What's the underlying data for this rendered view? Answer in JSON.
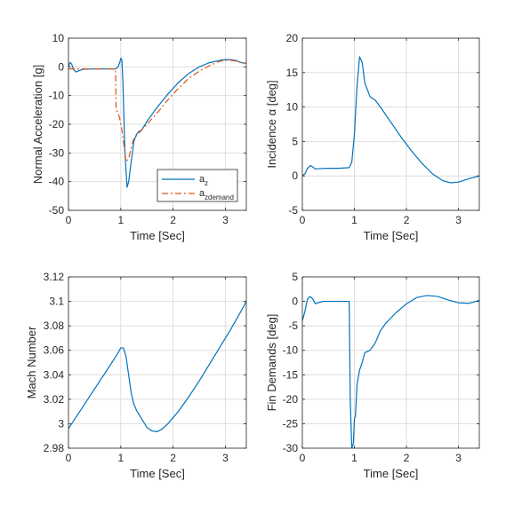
{
  "colors": {
    "series_blue": "#0072BD",
    "series_orange": "#D95319",
    "grid": "#dedede",
    "axes": "#262626",
    "background": "#ffffff"
  },
  "chart_data": [
    {
      "type": "line",
      "xlabel": "Time [Sec]",
      "ylabel": "Normal Acceleration [g]",
      "xlim": [
        0,
        3.4
      ],
      "ylim": [
        -50,
        10
      ],
      "xticks": [
        0,
        1,
        2,
        3
      ],
      "yticks": [
        10,
        0,
        -10,
        -20,
        -30,
        -40,
        -50
      ],
      "xtick_labels": [
        "0",
        "1",
        "2",
        "3"
      ],
      "ytick_labels": [
        "10",
        "0",
        "-10",
        "-20",
        "-30",
        "-40",
        "-50"
      ],
      "grid": true,
      "legend": {
        "placement": "bottom-right",
        "entries": [
          {
            "main": "a",
            "sub": "z"
          },
          {
            "main": "a",
            "sub": "zdemand"
          }
        ]
      },
      "series": [
        {
          "name": "az",
          "style": "solid",
          "color": "series_blue",
          "points": [
            [
              0,
              0
            ],
            [
              0.03,
              1.5
            ],
            [
              0.06,
              1
            ],
            [
              0.1,
              -1
            ],
            [
              0.15,
              -1.8
            ],
            [
              0.2,
              -1.3
            ],
            [
              0.3,
              -0.8
            ],
            [
              0.5,
              -0.7
            ],
            [
              0.7,
              -0.7
            ],
            [
              0.9,
              -0.7
            ],
            [
              0.95,
              0
            ],
            [
              0.98,
              1.5
            ],
            [
              1.0,
              3
            ],
            [
              1.02,
              2.5
            ],
            [
              1.04,
              -5
            ],
            [
              1.08,
              -30
            ],
            [
              1.12,
              -42
            ],
            [
              1.15,
              -40
            ],
            [
              1.2,
              -33
            ],
            [
              1.25,
              -26
            ],
            [
              1.3,
              -23.5
            ],
            [
              1.35,
              -22.5
            ],
            [
              1.4,
              -22
            ],
            [
              1.5,
              -19
            ],
            [
              1.7,
              -14
            ],
            [
              1.9,
              -9.5
            ],
            [
              2.1,
              -5.5
            ],
            [
              2.3,
              -2.3
            ],
            [
              2.5,
              0
            ],
            [
              2.7,
              1.5
            ],
            [
              2.9,
              2.3
            ],
            [
              3.0,
              2.5
            ],
            [
              3.1,
              2.5
            ],
            [
              3.2,
              2.2
            ],
            [
              3.3,
              1.5
            ],
            [
              3.4,
              1.2
            ]
          ]
        },
        {
          "name": "azdemand",
          "style": "dashdot",
          "color": "series_orange",
          "points": [
            [
              0,
              -0.7
            ],
            [
              0.3,
              -0.7
            ],
            [
              0.6,
              -0.7
            ],
            [
              0.9,
              -0.7
            ],
            [
              0.91,
              -15
            ],
            [
              0.95,
              -16
            ],
            [
              0.98,
              -18
            ],
            [
              1.03,
              -23
            ],
            [
              1.1,
              -33
            ],
            [
              1.15,
              -32
            ],
            [
              1.2,
              -28
            ],
            [
              1.25,
              -25
            ],
            [
              1.3,
              -24
            ],
            [
              1.4,
              -22
            ],
            [
              1.5,
              -20
            ],
            [
              1.7,
              -16
            ],
            [
              1.9,
              -11.5
            ],
            [
              2.1,
              -7.5
            ],
            [
              2.3,
              -4
            ],
            [
              2.5,
              -1.5
            ],
            [
              2.7,
              0.5
            ],
            [
              2.9,
              2
            ],
            [
              3.0,
              2.3
            ],
            [
              3.1,
              2.3
            ],
            [
              3.2,
              2
            ],
            [
              3.3,
              1.5
            ],
            [
              3.4,
              1.2
            ]
          ]
        }
      ]
    },
    {
      "type": "line",
      "xlabel": "Time [Sec]",
      "ylabel": "Incidence α [deg]",
      "xlim": [
        0,
        3.4
      ],
      "ylim": [
        -5,
        20
      ],
      "xticks": [
        0,
        1,
        2,
        3
      ],
      "yticks": [
        20,
        15,
        10,
        5,
        0,
        -5
      ],
      "xtick_labels": [
        "0",
        "1",
        "2",
        "3"
      ],
      "ytick_labels": [
        "20",
        "15",
        "10",
        "5",
        "0",
        "-5"
      ],
      "grid": true,
      "series": [
        {
          "name": "alpha",
          "style": "solid",
          "color": "series_blue",
          "points": [
            [
              0,
              0
            ],
            [
              0.05,
              0.3
            ],
            [
              0.1,
              1.1
            ],
            [
              0.15,
              1.5
            ],
            [
              0.2,
              1.3
            ],
            [
              0.25,
              1.0
            ],
            [
              0.3,
              1.05
            ],
            [
              0.5,
              1.1
            ],
            [
              0.7,
              1.1
            ],
            [
              0.9,
              1.2
            ],
            [
              0.95,
              2
            ],
            [
              1.0,
              6
            ],
            [
              1.05,
              13
            ],
            [
              1.1,
              17.3
            ],
            [
              1.15,
              16.5
            ],
            [
              1.2,
              13.5
            ],
            [
              1.3,
              11.5
            ],
            [
              1.4,
              11
            ],
            [
              1.5,
              10
            ],
            [
              1.7,
              7.8
            ],
            [
              1.9,
              5.6
            ],
            [
              2.1,
              3.6
            ],
            [
              2.3,
              1.8
            ],
            [
              2.5,
              0.3
            ],
            [
              2.7,
              -0.7
            ],
            [
              2.85,
              -1.0
            ],
            [
              3.0,
              -0.9
            ],
            [
              3.2,
              -0.4
            ],
            [
              3.4,
              0
            ]
          ]
        }
      ]
    },
    {
      "type": "line",
      "xlabel": "Time [Sec]",
      "ylabel": "Mach Number",
      "xlim": [
        0,
        3.4
      ],
      "ylim": [
        2.98,
        3.12
      ],
      "xticks": [
        0,
        1,
        2,
        3
      ],
      "yticks": [
        3.12,
        3.1,
        3.08,
        3.06,
        3.04,
        3.02,
        3,
        2.98
      ],
      "xtick_labels": [
        "0",
        "1",
        "2",
        "3"
      ],
      "ytick_labels": [
        "3.12",
        "3.1",
        "3.08",
        "3.06",
        "3.04",
        "3.02",
        "3",
        "2.98"
      ],
      "grid": true,
      "series": [
        {
          "name": "mach",
          "style": "solid",
          "color": "series_blue",
          "points": [
            [
              0,
              2.996
            ],
            [
              0.2,
              3.009
            ],
            [
              0.4,
              3.022
            ],
            [
              0.6,
              3.035
            ],
            [
              0.8,
              3.048
            ],
            [
              0.95,
              3.058
            ],
            [
              1.0,
              3.062
            ],
            [
              1.05,
              3.062
            ],
            [
              1.1,
              3.055
            ],
            [
              1.15,
              3.04
            ],
            [
              1.2,
              3.025
            ],
            [
              1.25,
              3.016
            ],
            [
              1.3,
              3.011
            ],
            [
              1.4,
              3.004
            ],
            [
              1.5,
              2.997
            ],
            [
              1.6,
              2.994
            ],
            [
              1.7,
              2.9935
            ],
            [
              1.8,
              2.996
            ],
            [
              1.9,
              3.0
            ],
            [
              2.1,
              3.01
            ],
            [
              2.3,
              3.022
            ],
            [
              2.5,
              3.035
            ],
            [
              2.7,
              3.049
            ],
            [
              2.9,
              3.063
            ],
            [
              3.1,
              3.077
            ],
            [
              3.3,
              3.092
            ],
            [
              3.4,
              3.1
            ]
          ]
        }
      ]
    },
    {
      "type": "line",
      "xlabel": "Time [Sec]",
      "ylabel": "Fin Demands [deg]",
      "xlim": [
        0,
        3.4
      ],
      "ylim": [
        -30,
        5
      ],
      "xticks": [
        0,
        1,
        2,
        3
      ],
      "yticks": [
        5,
        0,
        -5,
        -10,
        -15,
        -20,
        -25,
        -30
      ],
      "xtick_labels": [
        "0",
        "1",
        "2",
        "3"
      ],
      "ytick_labels": [
        "5",
        "0",
        "-5",
        "-10",
        "-15",
        "-20",
        "-25",
        "-30"
      ],
      "grid": true,
      "series": [
        {
          "name": "fin",
          "style": "solid",
          "color": "series_blue",
          "points": [
            [
              0,
              -4
            ],
            [
              0.05,
              -2
            ],
            [
              0.1,
              0.5
            ],
            [
              0.15,
              1
            ],
            [
              0.2,
              0.5
            ],
            [
              0.25,
              -0.5
            ],
            [
              0.3,
              -0.3
            ],
            [
              0.4,
              0
            ],
            [
              0.6,
              0
            ],
            [
              0.9,
              0
            ],
            [
              0.92,
              -20
            ],
            [
              0.95,
              -30
            ],
            [
              0.98,
              -29
            ],
            [
              1.0,
              -24
            ],
            [
              1.02,
              -23.5
            ],
            [
              1.05,
              -17
            ],
            [
              1.1,
              -14
            ],
            [
              1.15,
              -12.5
            ],
            [
              1.2,
              -10.5
            ],
            [
              1.3,
              -10
            ],
            [
              1.4,
              -8.5
            ],
            [
              1.5,
              -6
            ],
            [
              1.6,
              -4.5
            ],
            [
              1.8,
              -2.3
            ],
            [
              2.0,
              -0.5
            ],
            [
              2.2,
              0.8
            ],
            [
              2.4,
              1.2
            ],
            [
              2.6,
              1.0
            ],
            [
              2.8,
              0.3
            ],
            [
              3.0,
              -0.3
            ],
            [
              3.2,
              -0.4
            ],
            [
              3.4,
              0.2
            ]
          ]
        }
      ]
    }
  ]
}
